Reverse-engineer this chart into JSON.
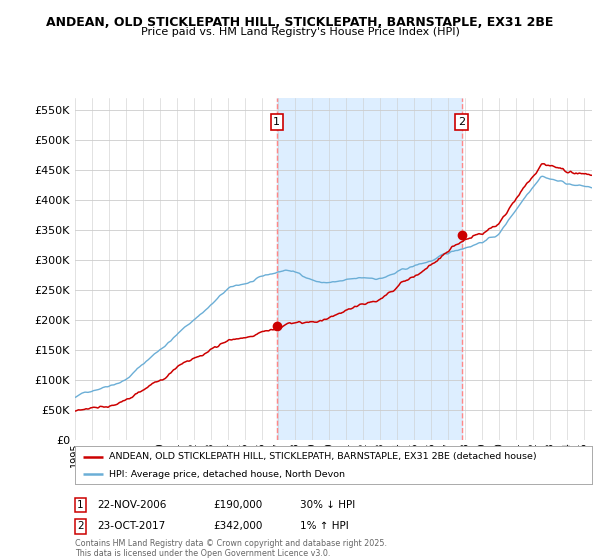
{
  "title_line1": "ANDEAN, OLD STICKLEPATH HILL, STICKLEPATH, BARNSTAPLE, EX31 2BE",
  "title_line2": "Price paid vs. HM Land Registry's House Price Index (HPI)",
  "ylim": [
    0,
    570000
  ],
  "yticks": [
    0,
    50000,
    100000,
    150000,
    200000,
    250000,
    300000,
    350000,
    400000,
    450000,
    500000,
    550000
  ],
  "xlim_start": 1995.0,
  "xlim_end": 2025.5,
  "hpi_color": "#6baed6",
  "hpi_fill_color": "#ddeeff",
  "price_color": "#cc0000",
  "vline_color": "#ff8888",
  "marker_color": "#cc0000",
  "sale1_x": 2006.9,
  "sale1_y": 190000,
  "sale2_x": 2017.8,
  "sale2_y": 342000,
  "legend_line1": "ANDEAN, OLD STICKLEPATH HILL, STICKLEPATH, BARNSTAPLE, EX31 2BE (detached house)",
  "legend_line2": "HPI: Average price, detached house, North Devon",
  "note1_label": "1",
  "note1_date": "22-NOV-2006",
  "note1_price": "£190,000",
  "note1_hpi": "30% ↓ HPI",
  "note2_label": "2",
  "note2_date": "23-OCT-2017",
  "note2_price": "£342,000",
  "note2_hpi": "1% ↑ HPI",
  "copyright": "Contains HM Land Registry data © Crown copyright and database right 2025.\nThis data is licensed under the Open Government Licence v3.0.",
  "background_color": "#ffffff",
  "grid_color": "#cccccc"
}
